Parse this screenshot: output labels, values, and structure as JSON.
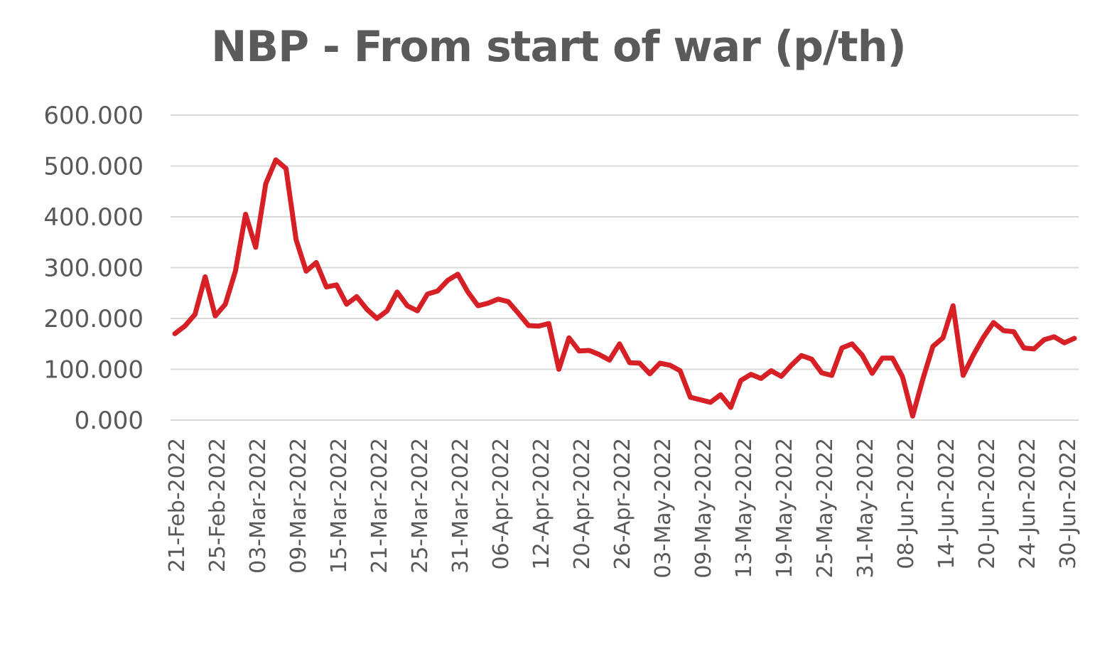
{
  "chart_data": {
    "type": "line",
    "title": "NBP - From start of war (p/th)",
    "xlabel": "",
    "ylabel": "",
    "ylim": [
      0,
      600
    ],
    "yticks": [
      "0.000",
      "100.000",
      "200.000",
      "300.000",
      "400.000",
      "500.000",
      "600.000"
    ],
    "grid": true,
    "legend": "none",
    "colors": {
      "series": "#d71f26",
      "grid": "#d9d9d9",
      "text": "#595959"
    },
    "x_tick_labels": [
      "21-Feb-2022",
      "25-Feb-2022",
      "03-Mar-2022",
      "09-Mar-2022",
      "15-Mar-2022",
      "21-Mar-2022",
      "25-Mar-2022",
      "31-Mar-2022",
      "06-Apr-2022",
      "12-Apr-2022",
      "20-Apr-2022",
      "26-Apr-2022",
      "03-May-2022",
      "09-May-2022",
      "13-May-2022",
      "19-May-2022",
      "25-May-2022",
      "31-May-2022",
      "08-Jun-2022",
      "14-Jun-2022",
      "20-Jun-2022",
      "24-Jun-2022",
      "30-Jun-2022"
    ],
    "series": [
      {
        "values": [
          170,
          185,
          208,
          282,
          205,
          228,
          293,
          405,
          340,
          465,
          512,
          495,
          355,
          293,
          310,
          262,
          266,
          228,
          243,
          218,
          200,
          215,
          252,
          225,
          215,
          248,
          254,
          275,
          287,
          252,
          225,
          230,
          238,
          233,
          210,
          186,
          185,
          190,
          100,
          162,
          136,
          137,
          129,
          118,
          150,
          113,
          112,
          91,
          112,
          108,
          97,
          45,
          40,
          35,
          50,
          25,
          78,
          90,
          82,
          97,
          86,
          108,
          127,
          120,
          93,
          88,
          142,
          150,
          128,
          92,
          122,
          122,
          85,
          8,
          80,
          145,
          162,
          225,
          88,
          128,
          163,
          192,
          176,
          174,
          142,
          140,
          158,
          164,
          152,
          161
        ]
      }
    ]
  }
}
